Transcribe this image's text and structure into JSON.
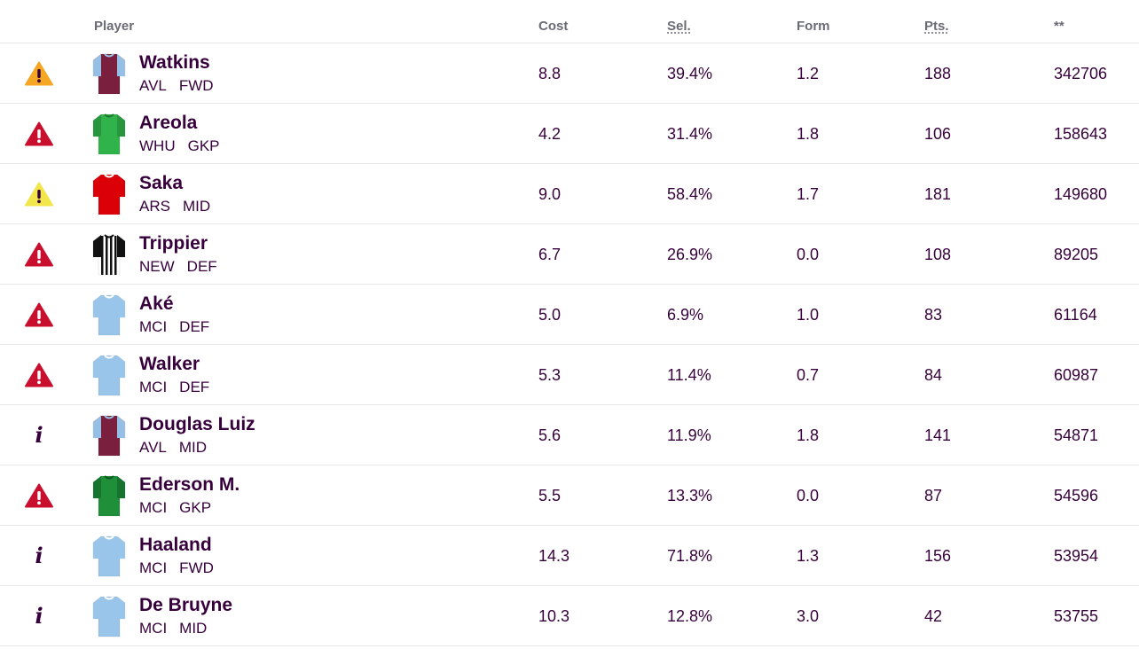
{
  "header": {
    "player": "Player",
    "cost": "Cost",
    "sel": "Sel.",
    "form": "Form",
    "pts": "Pts.",
    "transfers": "**"
  },
  "colors": {
    "warn_orange": "#f5a623",
    "warn_red": "#c8102e",
    "warn_yellow": "#f2e64b",
    "text": "#37003c"
  },
  "players": [
    {
      "name": "Watkins",
      "team": "AVL",
      "pos": "FWD",
      "cost": "8.8",
      "sel": "39.4%",
      "form": "1.2",
      "pts": "188",
      "transfers": "342706",
      "status": "warning-orange-icon",
      "shirt": "avl"
    },
    {
      "name": "Areola",
      "team": "WHU",
      "pos": "GKP",
      "cost": "4.2",
      "sel": "31.4%",
      "form": "1.8",
      "pts": "106",
      "transfers": "158643",
      "status": "warning-red-icon",
      "shirt": "whu-gk"
    },
    {
      "name": "Saka",
      "team": "ARS",
      "pos": "MID",
      "cost": "9.0",
      "sel": "58.4%",
      "form": "1.7",
      "pts": "181",
      "transfers": "149680",
      "status": "warning-yellow-icon",
      "shirt": "ars"
    },
    {
      "name": "Trippier",
      "team": "NEW",
      "pos": "DEF",
      "cost": "6.7",
      "sel": "26.9%",
      "form": "0.0",
      "pts": "108",
      "transfers": "89205",
      "status": "warning-red-icon",
      "shirt": "new"
    },
    {
      "name": "Aké",
      "team": "MCI",
      "pos": "DEF",
      "cost": "5.0",
      "sel": "6.9%",
      "form": "1.0",
      "pts": "83",
      "transfers": "61164",
      "status": "warning-red-icon",
      "shirt": "mci"
    },
    {
      "name": "Walker",
      "team": "MCI",
      "pos": "DEF",
      "cost": "5.3",
      "sel": "11.4%",
      "form": "0.7",
      "pts": "84",
      "transfers": "60987",
      "status": "warning-red-icon",
      "shirt": "mci"
    },
    {
      "name": "Douglas Luiz",
      "team": "AVL",
      "pos": "MID",
      "cost": "5.6",
      "sel": "11.9%",
      "form": "1.8",
      "pts": "141",
      "transfers": "54871",
      "status": "info-icon",
      "shirt": "avl"
    },
    {
      "name": "Ederson M.",
      "team": "MCI",
      "pos": "GKP",
      "cost": "5.5",
      "sel": "13.3%",
      "form": "0.0",
      "pts": "87",
      "transfers": "54596",
      "status": "warning-red-icon",
      "shirt": "mci-gk"
    },
    {
      "name": "Haaland",
      "team": "MCI",
      "pos": "FWD",
      "cost": "14.3",
      "sel": "71.8%",
      "form": "1.3",
      "pts": "156",
      "transfers": "53954",
      "status": "info-icon",
      "shirt": "mci"
    },
    {
      "name": "De Bruyne",
      "team": "MCI",
      "pos": "MID",
      "cost": "10.3",
      "sel": "12.8%",
      "form": "3.0",
      "pts": "42",
      "transfers": "53755",
      "status": "info-icon",
      "shirt": "mci"
    }
  ]
}
